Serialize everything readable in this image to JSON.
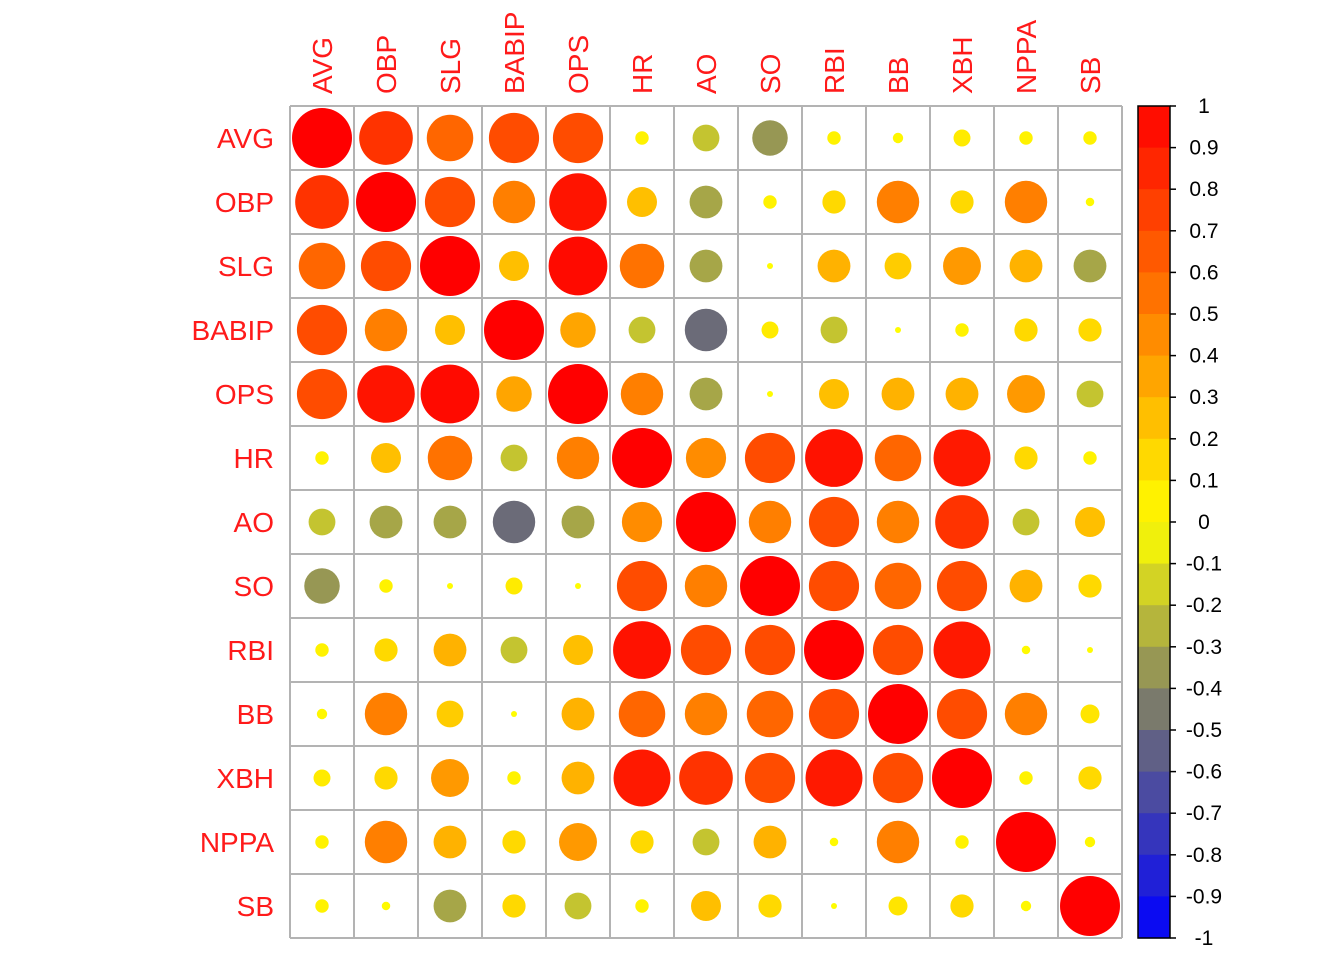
{
  "chart_data": {
    "type": "heatmap",
    "variables": [
      "AVG",
      "OBP",
      "SLG",
      "BABIP",
      "OPS",
      "HR",
      "AO",
      "SO",
      "RBI",
      "BB",
      "XBH",
      "NPPA",
      "SB"
    ],
    "matrix": [
      [
        1.0,
        0.8,
        0.6,
        0.7,
        0.7,
        0.05,
        -0.2,
        -0.35,
        0.05,
        0.03,
        0.08,
        0.05,
        0.05
      ],
      [
        0.8,
        1.0,
        0.7,
        0.5,
        0.92,
        0.25,
        -0.3,
        0.05,
        0.15,
        0.5,
        0.15,
        0.5,
        0.02
      ],
      [
        0.6,
        0.7,
        1.0,
        0.25,
        0.96,
        0.55,
        -0.3,
        0.01,
        0.3,
        0.2,
        0.4,
        0.3,
        -0.3
      ],
      [
        0.7,
        0.5,
        0.25,
        1.0,
        0.35,
        -0.2,
        -0.5,
        0.08,
        -0.2,
        0.01,
        0.05,
        0.15,
        0.15
      ],
      [
        0.7,
        0.92,
        0.96,
        0.35,
        1.0,
        0.5,
        -0.3,
        0.01,
        0.25,
        0.3,
        0.3,
        0.4,
        -0.2
      ],
      [
        0.05,
        0.25,
        0.55,
        -0.2,
        0.5,
        1.0,
        0.45,
        0.7,
        0.93,
        0.6,
        0.9,
        0.15,
        0.05
      ],
      [
        -0.2,
        -0.3,
        -0.3,
        -0.5,
        -0.3,
        0.45,
        1.0,
        0.5,
        0.7,
        0.5,
        0.8,
        -0.2,
        0.25
      ],
      [
        -0.35,
        0.05,
        0.01,
        0.08,
        0.01,
        0.7,
        0.5,
        1.0,
        0.7,
        0.6,
        0.7,
        0.3,
        0.15
      ],
      [
        0.05,
        0.15,
        0.3,
        -0.2,
        0.25,
        0.93,
        0.7,
        0.7,
        1.0,
        0.7,
        0.9,
        0.02,
        0.01
      ],
      [
        0.03,
        0.5,
        0.2,
        0.01,
        0.3,
        0.6,
        0.5,
        0.6,
        0.7,
        1.0,
        0.7,
        0.5,
        0.1
      ],
      [
        0.08,
        0.15,
        0.4,
        0.05,
        0.3,
        0.9,
        0.8,
        0.7,
        0.9,
        0.7,
        1.0,
        0.05,
        0.15
      ],
      [
        0.05,
        0.5,
        0.3,
        0.15,
        0.4,
        0.15,
        -0.2,
        0.3,
        0.02,
        0.5,
        0.05,
        1.0,
        0.03
      ],
      [
        0.05,
        0.02,
        -0.3,
        0.15,
        -0.2,
        0.05,
        0.25,
        0.15,
        0.01,
        0.1,
        0.15,
        0.03,
        1.0
      ]
    ],
    "colorbar": {
      "ticks": [
        "1",
        "0.9",
        "0.8",
        "0.7",
        "0.6",
        "0.5",
        "0.4",
        "0.3",
        "0.2",
        "0.1",
        "0",
        "-0.1",
        "-0.2",
        "-0.3",
        "-0.4",
        "-0.5",
        "-0.6",
        "-0.7",
        "-0.8",
        "-0.9",
        "-1"
      ],
      "range": [
        -1,
        1
      ],
      "colors": {
        "minus1": "#0000ff",
        "minus05": "#6b6b78",
        "zero": "#ffff00",
        "plus05": "#ff7f00",
        "plus1": "#ff0000"
      }
    },
    "label_color": "#ff1a1a",
    "grid_color": "#b3b3b3",
    "title": "",
    "xlabel": "",
    "ylabel": ""
  }
}
